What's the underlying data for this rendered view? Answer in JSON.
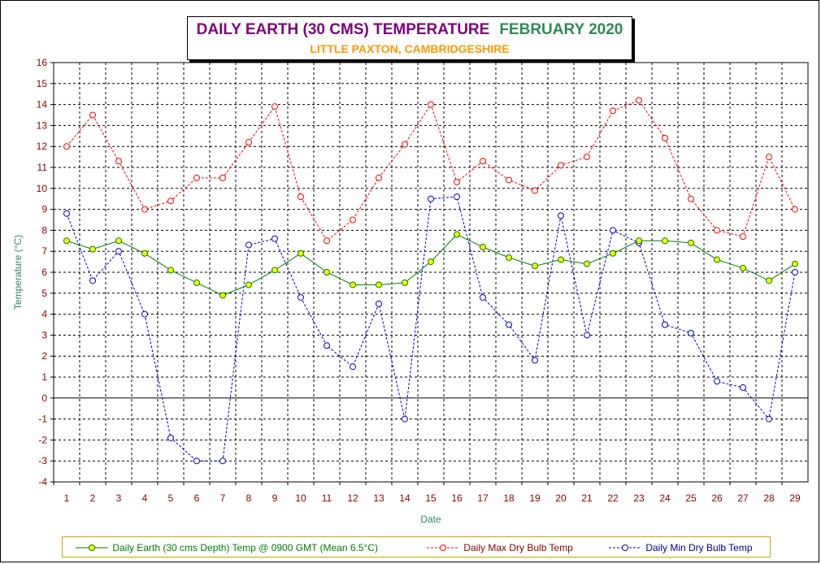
{
  "title": {
    "main": "DAILY EARTH (30 CMS) TEMPERATURE",
    "month": "FEBRUARY 2020",
    "subtitle": "LITTLE PAXTON, CAMBRIDGESHIRE"
  },
  "colors": {
    "earth": "#008000",
    "earth_marker": "#ffff00",
    "max": "#ff0000",
    "min": "#0000cc",
    "axis_text": "#8b0000",
    "label_text": "#2e8b57"
  },
  "chart_data": {
    "type": "line",
    "title": "DAILY EARTH (30 CMS) TEMPERATURE FEBRUARY 2020",
    "subtitle": "LITTLE PAXTON, CAMBRIDGESHIRE",
    "xlabel": "Date",
    "ylabel": "Temperature (°C)",
    "ylim": [
      -4,
      16
    ],
    "yticks": [
      "16",
      "15",
      "14",
      "13",
      "12",
      "11",
      "10",
      "9",
      "8",
      "7",
      "6",
      "5",
      "4",
      "3",
      "2",
      "1",
      "0",
      "-1",
      "-2",
      "-3",
      "-4"
    ],
    "x": [
      1,
      2,
      3,
      4,
      5,
      6,
      7,
      8,
      9,
      10,
      11,
      12,
      13,
      14,
      15,
      16,
      17,
      18,
      19,
      20,
      21,
      22,
      23,
      24,
      25,
      26,
      27,
      28,
      29
    ],
    "grid": true,
    "legend_position": "bottom",
    "series": [
      {
        "name": "Daily Earth (30 cms Depth) Temp @ 0900 GMT (Mean 6.5°C)",
        "style": "solid",
        "values": [
          7.5,
          7.1,
          7.5,
          6.9,
          6.1,
          5.5,
          4.9,
          5.4,
          6.1,
          6.9,
          6.0,
          5.4,
          5.4,
          5.5,
          6.5,
          7.8,
          7.2,
          6.7,
          6.3,
          6.6,
          6.4,
          6.9,
          7.5,
          7.5,
          7.4,
          6.6,
          6.2,
          5.6,
          6.4
        ]
      },
      {
        "name": "Daily Max Dry Bulb Temp",
        "style": "dashed",
        "values": [
          12.0,
          13.5,
          11.3,
          9.0,
          9.4,
          10.5,
          10.5,
          12.2,
          13.9,
          9.6,
          7.5,
          8.5,
          10.5,
          12.1,
          14.0,
          10.3,
          11.3,
          10.4,
          9.9,
          11.1,
          11.5,
          13.7,
          14.2,
          12.4,
          9.5,
          8.0,
          7.7,
          11.5,
          9.0
        ]
      },
      {
        "name": "Daily Min Dry Bulb Temp",
        "style": "dashed",
        "values": [
          8.8,
          5.6,
          7.0,
          4.0,
          -1.9,
          -3.0,
          -3.0,
          7.3,
          7.6,
          4.8,
          2.5,
          1.5,
          4.5,
          -1.0,
          9.5,
          9.6,
          4.8,
          3.5,
          1.8,
          8.7,
          3.0,
          8.0,
          7.4,
          3.5,
          3.1,
          0.8,
          0.5,
          -1.0,
          6.0
        ]
      }
    ]
  }
}
